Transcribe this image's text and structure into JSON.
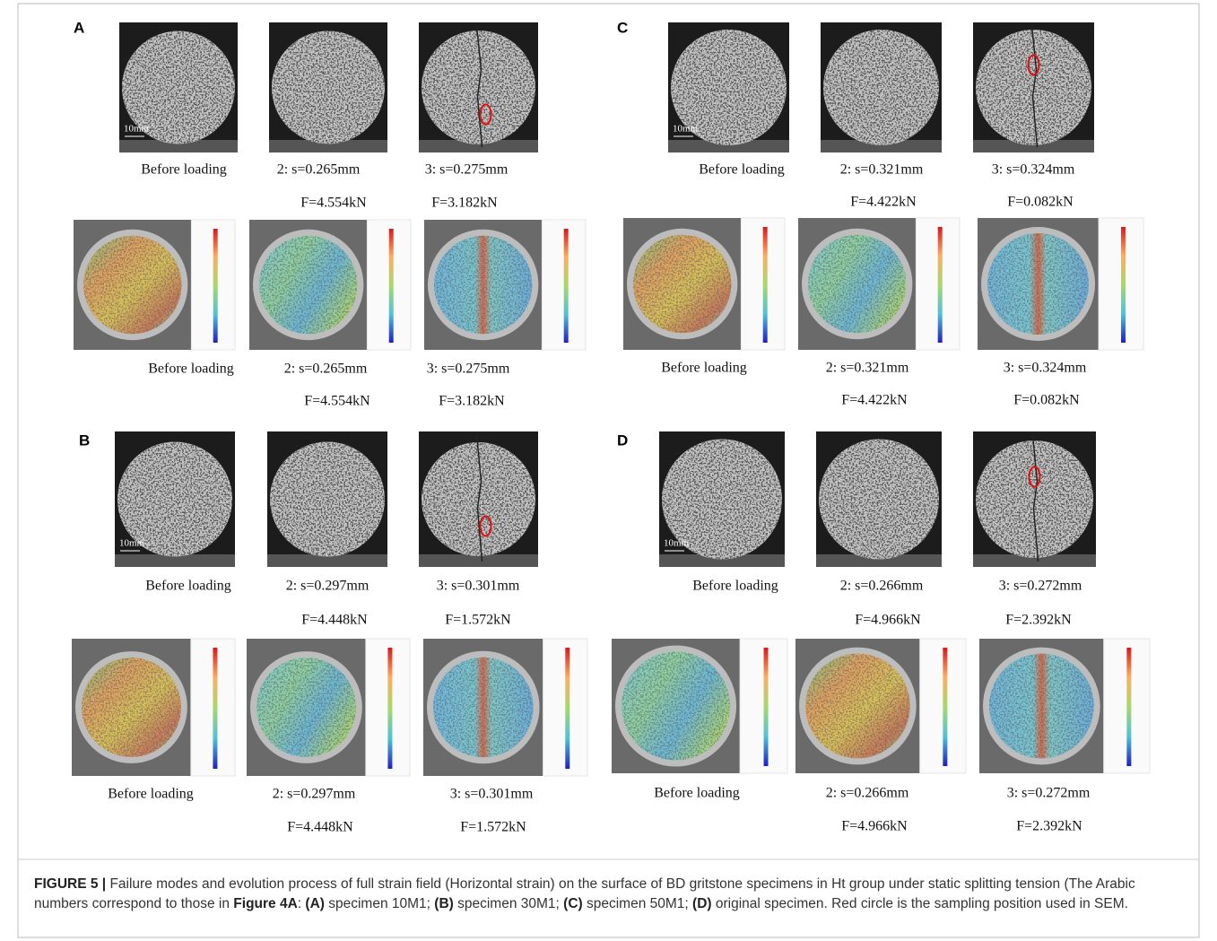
{
  "panels": [
    {
      "label": "A",
      "scale_bar": "10mm",
      "photo_captions": [
        "Before loading",
        "2: s=0.265mm",
        "3: s=0.275mm"
      ],
      "photo_forces": [
        "F=4.554kN",
        "F=3.182kN"
      ],
      "strain_captions": [
        "Before loading",
        "2: s=0.265mm",
        "3: s=0.275mm"
      ],
      "strain_forces": [
        "F=4.554kN",
        "F=3.182kN"
      ]
    },
    {
      "label": "B",
      "scale_bar": "10mm",
      "photo_captions": [
        "Before loading",
        "2: s=0.297mm",
        "3: s=0.301mm"
      ],
      "photo_forces": [
        "F=4.448kN",
        "F=1.572kN"
      ],
      "strain_captions": [
        "Before loading",
        "2: s=0.297mm",
        "3: s=0.301mm"
      ],
      "strain_forces": [
        "F=4.448kN",
        "F=1.572kN"
      ]
    },
    {
      "label": "C",
      "scale_bar": "10mm",
      "photo_captions": [
        "Before loading",
        "2: s=0.321mm",
        "3: s=0.324mm"
      ],
      "photo_forces": [
        "F=4.422kN",
        "F=0.082kN"
      ],
      "strain_captions": [
        "Before loading",
        "2: s=0.321mm",
        "3: s=0.324mm"
      ],
      "strain_forces": [
        "F=4.422kN",
        "F=0.082kN"
      ]
    },
    {
      "label": "D",
      "scale_bar": "10mm",
      "photo_captions": [
        "Before loading",
        "2: s=0.266mm",
        "3: s=0.272mm"
      ],
      "photo_forces": [
        "F=4.966kN",
        "F=2.392kN"
      ],
      "strain_captions": [
        "Before loading",
        "2: s=0.266mm",
        "3: s=0.272mm"
      ],
      "strain_forces": [
        "F=4.966kN",
        "F=2.392kN"
      ]
    }
  ],
  "caption": {
    "segments": [
      "FIGURE 5 |",
      " Failure modes and evolution process of full strain field (Horizontal strain) on the surface of BD gritstone specimens in Ht group under static splitting tension (The Arabic numbers correspond to those in ",
      "Figure 4A",
      ": ",
      "(A)",
      " specimen 10M1; ",
      "(B)",
      " specimen 30M1; ",
      "(C)",
      " specimen 50M1; ",
      "(D)",
      " original specimen. Red circle is the sampling position used in SEM."
    ]
  }
}
